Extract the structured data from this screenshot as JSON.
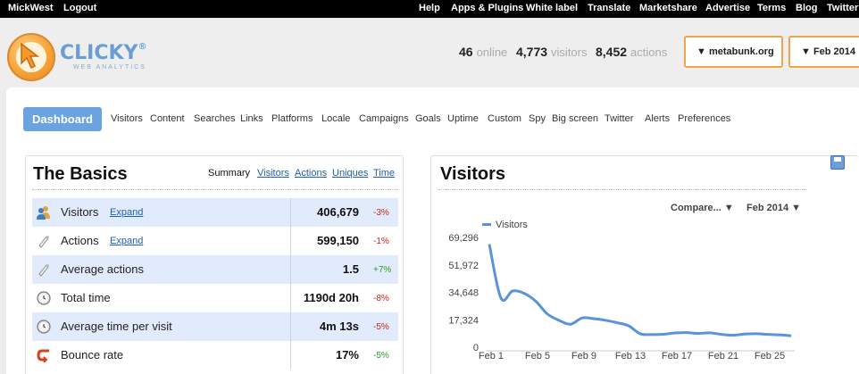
{
  "topbar": {
    "left": [
      "MickWest",
      "Logout"
    ],
    "right": [
      "Help",
      "Apps & Plugins",
      "White label",
      "Translate",
      "Marketshare",
      "Advertise",
      "Terms",
      "Blog",
      "Twitter"
    ]
  },
  "logo": {
    "text": "CLICKY",
    "registered": "®",
    "sub": "WEB ANALYTICS"
  },
  "stats": {
    "online_value": "46",
    "online_label": "online",
    "visitors_value": "4,773",
    "visitors_label": "visitors",
    "actions_value": "8,452",
    "actions_label": "actions"
  },
  "site_select": "▼ metabunk.org",
  "date_select": "▼ Feb 2014",
  "nav": {
    "dashboard": "Dashboard",
    "items": [
      "Visitors",
      "Content",
      "Searches",
      "Links",
      "Platforms",
      "Locale",
      "Campaigns",
      "Goals",
      "Uptime",
      "Custom",
      "Spy",
      "Big screen",
      "Twitter",
      "Alerts",
      "Preferences"
    ]
  },
  "basics": {
    "title": "The Basics",
    "tabs": [
      "Summary",
      "Visitors",
      "Actions",
      "Uniques",
      "Time"
    ],
    "rows": [
      {
        "label": "Visitors",
        "expand": "Expand",
        "value": "406,679",
        "change": "-3%",
        "icon": "visitors-icon"
      },
      {
        "label": "Actions",
        "expand": "Expand",
        "value": "599,150",
        "change": "-1%",
        "icon": "actions-icon"
      },
      {
        "label": "Average actions",
        "expand": "",
        "value": "1.5",
        "change": "+7%",
        "icon": "average-actions-icon"
      },
      {
        "label": "Total time",
        "expand": "",
        "value": "1190d 20h",
        "change": "-8%",
        "icon": "clock-icon"
      },
      {
        "label": "Average time per visit",
        "expand": "",
        "value": "4m 13s",
        "change": "-5%",
        "icon": "clock-icon"
      },
      {
        "label": "Bounce rate",
        "expand": "",
        "value": "17%",
        "change": "-5%",
        "icon": "bounce-icon"
      }
    ]
  },
  "visitors_panel": {
    "title": "Visitors",
    "compare": "Compare... ▼",
    "date": "Feb 2014 ▼"
  },
  "colors": {
    "accent": "#6aa3e0",
    "orange": "#f3a34a",
    "line": "#5b93d8",
    "negative": "#c2261d",
    "positive": "#2a9b2a"
  },
  "chart_data": {
    "type": "line",
    "series": [
      {
        "name": "Visitors",
        "x": [
          1,
          2,
          3,
          4,
          5,
          6,
          7,
          8,
          9,
          10,
          11,
          12,
          13,
          14,
          15,
          16,
          17,
          18,
          19,
          20,
          21,
          22,
          23,
          24,
          25,
          26,
          27
        ],
        "values": [
          65000,
          31000,
          35500,
          34000,
          29000,
          21000,
          17000,
          14500,
          18500,
          18000,
          17000,
          15500,
          13500,
          8500,
          8000,
          8200,
          9000,
          9200,
          8700,
          9100,
          8100,
          7600,
          8300,
          8500,
          8100,
          7800,
          7200
        ]
      }
    ],
    "xticks": [
      "Feb 1",
      "Feb 5",
      "Feb 9",
      "Feb 13",
      "Feb 17",
      "Feb 21",
      "Feb 25"
    ],
    "xtick_positions": [
      1,
      5,
      9,
      13,
      17,
      21,
      25
    ],
    "yticks": [
      "0",
      "17,324",
      "34,648",
      "51,972",
      "69,296"
    ],
    "ylim": [
      0,
      69296
    ],
    "legend": "top-left",
    "grid": false
  }
}
